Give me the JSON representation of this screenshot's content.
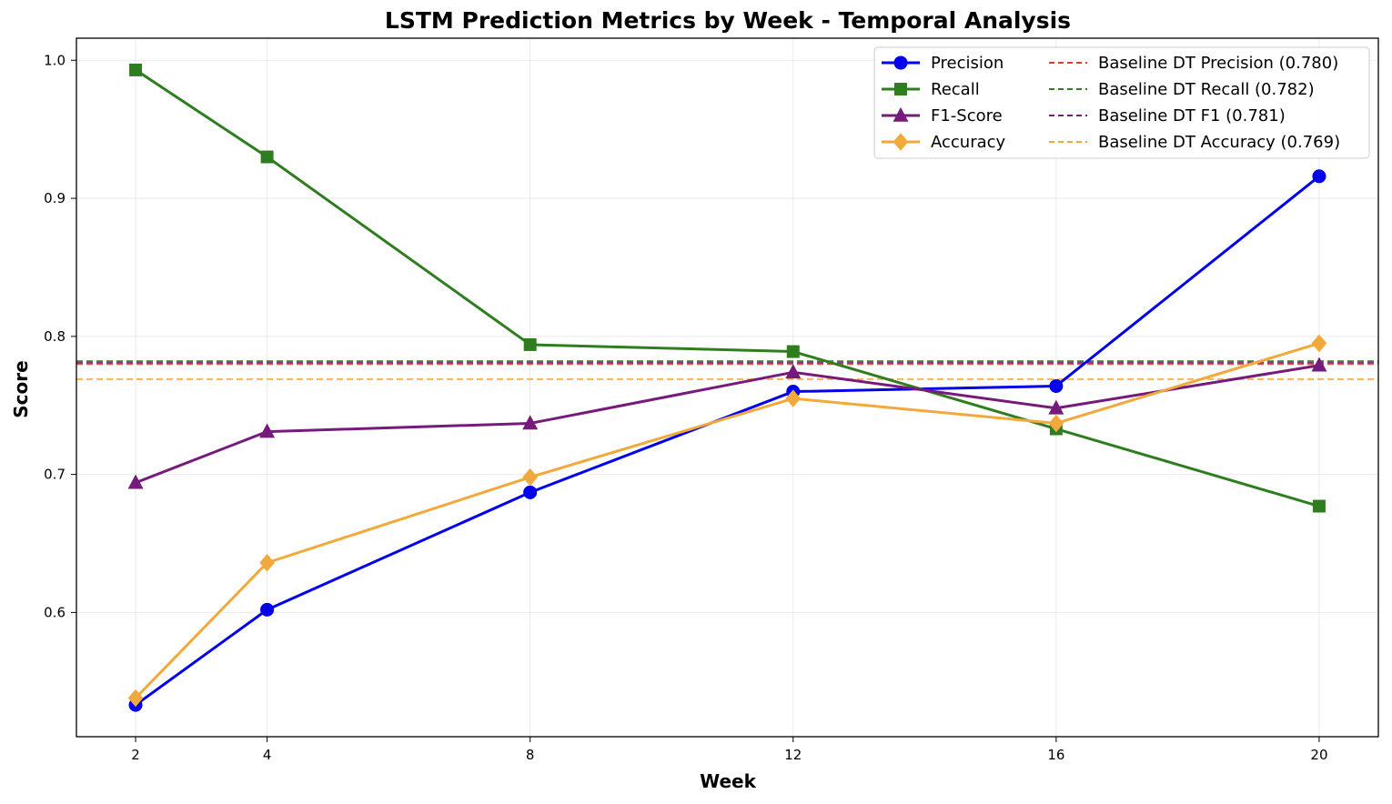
{
  "chart_data": {
    "type": "line",
    "title": "LSTM Prediction Metrics by Week - Temporal Analysis",
    "xlabel": "Week",
    "ylabel": "Score",
    "x": [
      2,
      4,
      8,
      12,
      16,
      20
    ],
    "xlim": [
      1.1,
      20.9
    ],
    "ylim": [
      0.51,
      1.016
    ],
    "xticks": [
      2,
      4,
      8,
      12,
      16,
      20
    ],
    "yticks": [
      0.6,
      0.7,
      0.8,
      0.9,
      1.0
    ],
    "ytick_labels": [
      "0.6",
      "0.7",
      "0.8",
      "0.9",
      "1.0"
    ],
    "grid": true,
    "legend_position": "top-right",
    "series": [
      {
        "name": "Precision",
        "color": "#0000ee",
        "marker": "circle",
        "values": [
          0.533,
          0.602,
          0.687,
          0.76,
          0.764,
          0.916
        ]
      },
      {
        "name": "Recall",
        "color": "#2e7d1e",
        "marker": "square",
        "values": [
          0.993,
          0.93,
          0.794,
          0.789,
          0.733,
          0.677
        ]
      },
      {
        "name": "F1-Score",
        "color": "#761a7c",
        "marker": "triangle",
        "values": [
          0.694,
          0.731,
          0.737,
          0.774,
          0.748,
          0.779
        ]
      },
      {
        "name": "Accuracy",
        "color": "#f2a93b",
        "marker": "diamond",
        "values": [
          0.538,
          0.636,
          0.698,
          0.755,
          0.737,
          0.795
        ]
      }
    ],
    "baselines": [
      {
        "name": "Baseline DT Precision (0.780)",
        "value": 0.78,
        "color": "#e03a2a"
      },
      {
        "name": "Baseline DT Recall (0.782)",
        "value": 0.782,
        "color": "#2e7d1e"
      },
      {
        "name": "Baseline DT F1 (0.781)",
        "value": 0.781,
        "color": "#761a7c"
      },
      {
        "name": "Baseline DT Accuracy (0.769)",
        "value": 0.769,
        "color": "#f2a93b"
      }
    ]
  }
}
